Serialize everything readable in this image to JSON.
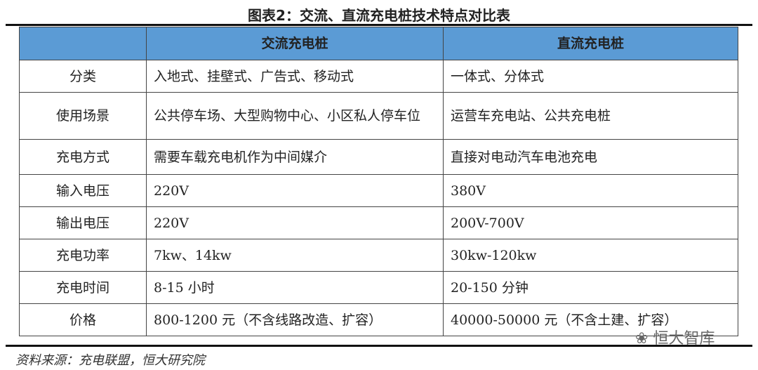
{
  "title": "图表2：交流、直流充电桩技术特点对比表",
  "header": [
    "",
    "交流充电桩",
    "直流充电桩"
  ],
  "rows": [
    [
      "分类",
      "入地式、挂壁式、广告式、移动式",
      "一体式、分体式"
    ],
    [
      "使用场景",
      "公共停车场、大型购物中心、小区私人停车位",
      "运营车充电站、公共充电桩"
    ],
    [
      "充电方式",
      "需要车载充电机作为中间媒介",
      "直接对电动汽车电池充电"
    ],
    [
      "输入电压",
      "220V",
      "380V"
    ],
    [
      "输出电压",
      "220V",
      "200V-700V"
    ],
    [
      "充电功率",
      "7kw、14kw",
      "30kw-120kw"
    ],
    [
      "充电时间",
      "8-15 小时",
      "20-150 分钟"
    ],
    [
      "价格",
      "800-1200 元（不含线路改造、扩容）",
      "40000-50000 元（不含土建、扩容）"
    ]
  ],
  "source": "资料来源：充电联盟，恒大研究院",
  "watermark": "恒大智库",
  "colors": {
    "header_bg": "#5b9bd5"
  }
}
